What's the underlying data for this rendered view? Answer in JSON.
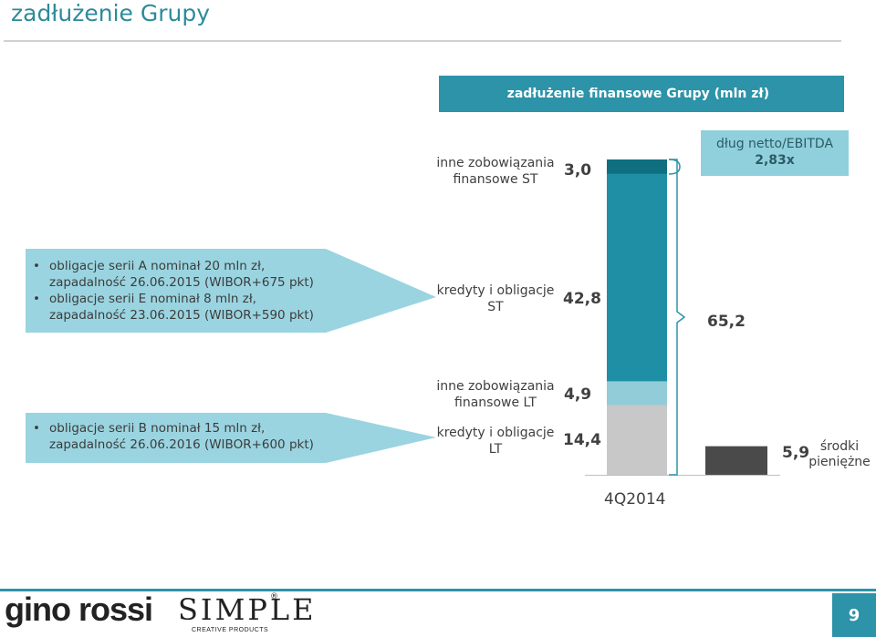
{
  "slide": {
    "title": "zadłużenie Grupy",
    "page_number": "9"
  },
  "chart_data": {
    "type": "bar",
    "title": "zadłużenie finansowe Grupy (mln zł)",
    "categories": [
      "4Q2014"
    ],
    "stacked_bar": {
      "segments": [
        {
          "name": "kredyty i obligacje LT",
          "value": 14.4,
          "label": "14,4",
          "color": "#c8c8c8"
        },
        {
          "name": "inne zobowiązania finansowe LT",
          "value": 4.9,
          "label": "4,9",
          "color": "#92ccd8"
        },
        {
          "name": "kredyty i obligacje ST",
          "value": 42.8,
          "label": "42,8",
          "color": "#1f8fa6"
        },
        {
          "name": "inne zobowiązania finansowe ST",
          "value": 3.0,
          "label": "3,0",
          "color": "#0f6f80"
        }
      ]
    },
    "net_debt": {
      "label": "65,2",
      "value": 65.2
    },
    "cash": {
      "name": "środki pieniężne",
      "value": 5.9,
      "label": "5,9",
      "color": "#4a4a4a"
    },
    "ratio": {
      "label": "dług netto/EBITDA",
      "value": "2,83x"
    },
    "ylim": [
      0,
      65.1
    ],
    "grid": false
  },
  "notes": {
    "st_bonds": [
      {
        "line1": "obligacje serii A nominał 20 mln zł,",
        "line2": "zapadalność 26.06.2015 (WIBOR+675 pkt)"
      },
      {
        "line1": "obligacje serii E nominał 8 mln zł,",
        "line2": "zapadalność 23.06.2015 (WIBOR+590 pkt)"
      }
    ],
    "lt_bonds": [
      {
        "line1": "obligacje serii B nominał 15 mln zł,",
        "line2": "zapadalność 26.06.2016 (WIBOR+600 pkt)"
      }
    ]
  },
  "footer": {
    "logo_gino": "gino rossi",
    "logo_simple": "SIMPLE",
    "logo_reg": "®",
    "logo_sub": "CREATIVE PRODUCTS"
  },
  "colors": {
    "accent": "#2c93a8",
    "light_accent": "#9ad4e0",
    "title": "#2d8a9a"
  }
}
